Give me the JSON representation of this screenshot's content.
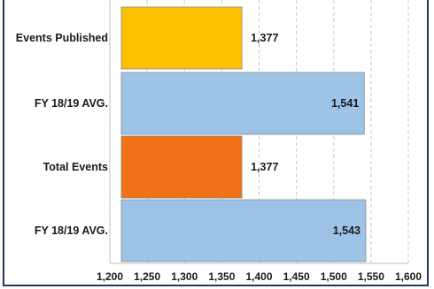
{
  "chart_data": {
    "type": "bar",
    "orientation": "horizontal",
    "categories": [
      "Events Published",
      "FY 18/19 AVG.",
      "Total Events",
      "FY 18/19 AVG."
    ],
    "values": [
      1377,
      1541,
      1377,
      1543
    ],
    "value_labels": [
      "1,377",
      "1,541",
      "1,377",
      "1,543"
    ],
    "bar_colors": [
      "#ffc000",
      "#9dc3e6",
      "#f07117",
      "#9dc3e6"
    ],
    "xlim": [
      1200,
      1600
    ],
    "xticks": [
      1200,
      1250,
      1300,
      1350,
      1400,
      1450,
      1500,
      1550,
      1600
    ],
    "xtick_labels": [
      "1,200",
      "1,250",
      "1,300",
      "1,350",
      "1,400",
      "1,450",
      "1,500",
      "1,550",
      "1,600"
    ],
    "grid": "vertical dashed",
    "title": "",
    "xlabel": "",
    "ylabel": ""
  }
}
